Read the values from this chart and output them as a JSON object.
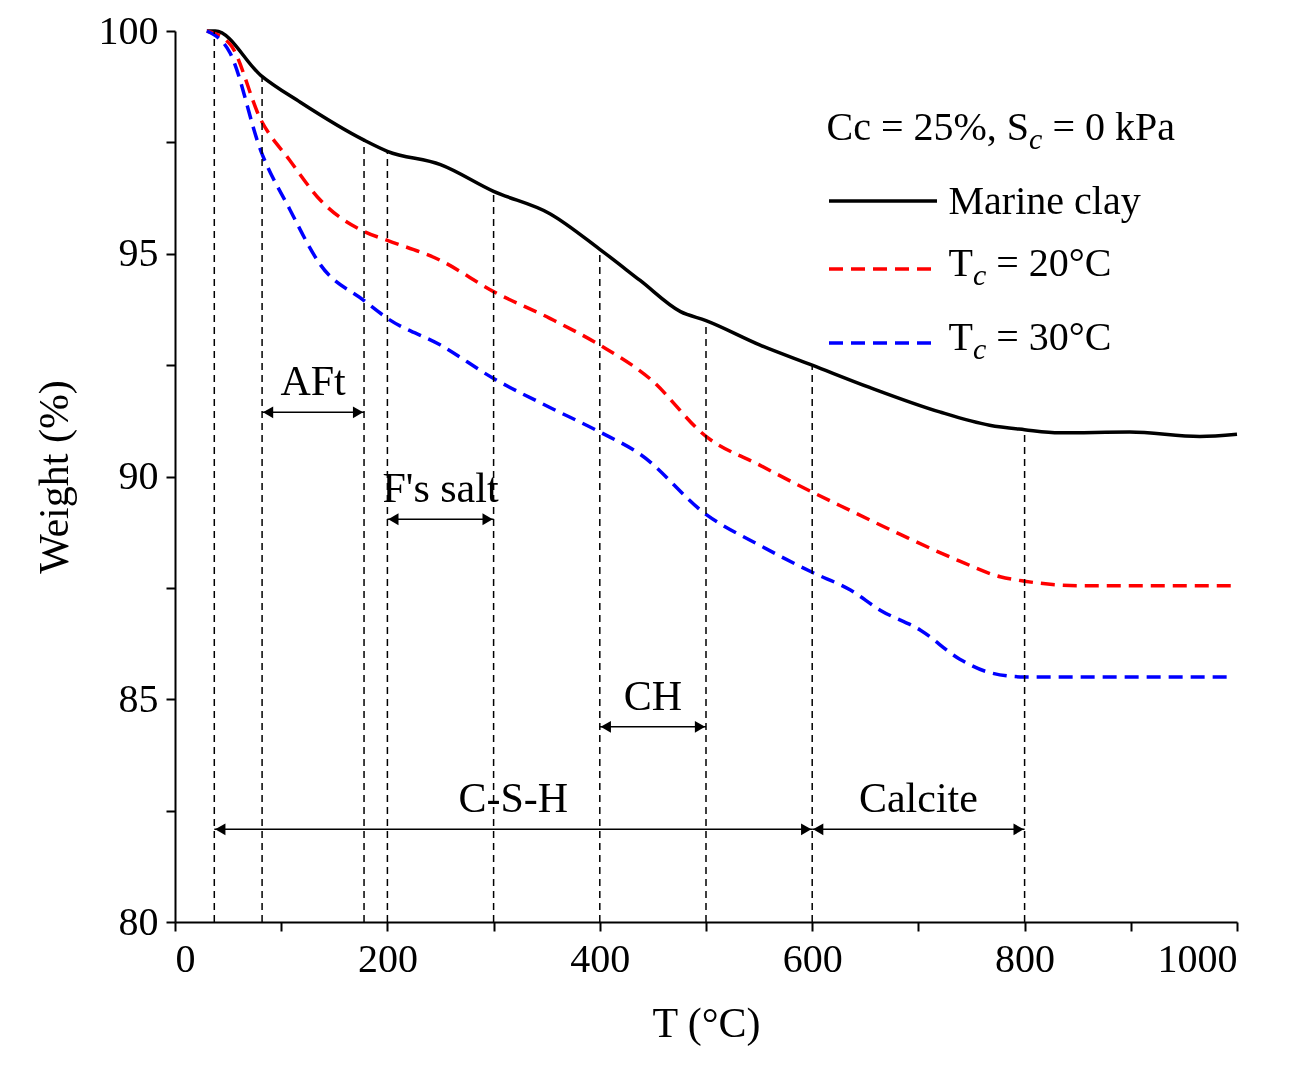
{
  "chart_data": {
    "type": "line",
    "xlabel": "T (°C)",
    "ylabel": "Weight (%)",
    "legend_title": "Cc = 25%, S$_{c}$ = 0 kPa",
    "legend": "top right",
    "grid": false,
    "xlim": [
      0,
      1000
    ],
    "ylim": [
      80,
      100
    ],
    "xticks": [
      0,
      {
        "value": 100,
        "label": null
      },
      200,
      {
        "value": 300,
        "label": null
      },
      400,
      {
        "value": 500,
        "label": null
      },
      600,
      {
        "value": 700,
        "label": null
      },
      800,
      {
        "value": 900,
        "label": null
      },
      1000
    ],
    "yticks": [
      80,
      {
        "value": 82.5,
        "label": null
      },
      85,
      {
        "value": 87.5,
        "label": null
      },
      90,
      {
        "value": 92.5,
        "label": null
      },
      95,
      {
        "value": 97.5,
        "label": null
      },
      100
    ],
    "series": [
      {
        "name": "Marine clay",
        "color": "#000000",
        "line_style": "solid",
        "x": [
          30,
          38,
          81,
          118,
          178,
          200,
          250,
          300,
          353,
          400,
          438,
          476,
          500,
          551,
          600,
          654,
          720,
          767,
          800,
          833,
          899,
          965,
          1000
        ],
        "values": [
          100,
          100,
          99.0,
          98.4,
          97.55,
          97.3,
          97.0,
          96.4,
          95.9,
          95.1,
          94.4,
          93.7,
          93.5,
          92.95,
          92.5,
          92.0,
          91.45,
          91.15,
          91.05,
          90.98,
          91.0,
          90.9,
          90.95
        ]
      },
      {
        "name": "T$_{c}$ = 20°C",
        "color": "#ff0000",
        "line_style": "dashed",
        "x": [
          30,
          52,
          81,
          108,
          137,
          178,
          200,
          250,
          300,
          353,
          400,
          447,
          500,
          551,
          600,
          626,
          683,
          739,
          777,
          800,
          852,
          1000
        ],
        "values": [
          100,
          99.7,
          98.0,
          97.1,
          96.2,
          95.5,
          95.3,
          94.85,
          94.15,
          93.55,
          92.95,
          92.2,
          90.9,
          90.25,
          89.65,
          89.35,
          88.7,
          88.1,
          87.75,
          87.65,
          87.55,
          87.55
        ]
      },
      {
        "name": "T$_{c}$ = 30°C",
        "color": "#0000ff",
        "line_style": "dashed",
        "x": [
          30,
          52,
          81,
          108,
          137,
          178,
          200,
          250,
          300,
          353,
          400,
          438,
          500,
          551,
          600,
          636,
          664,
          702,
          739,
          767,
          800,
          871,
          991
        ],
        "values": [
          100,
          99.5,
          97.3,
          96.0,
          94.75,
          93.95,
          93.55,
          92.95,
          92.2,
          91.55,
          91.0,
          90.5,
          89.15,
          88.45,
          87.85,
          87.45,
          87.0,
          86.55,
          85.9,
          85.6,
          85.5,
          85.5,
          85.5
        ]
      }
    ],
    "ref_lines": [
      {
        "axis": "x",
        "value": 37
      },
      {
        "axis": "x",
        "value": 82
      },
      {
        "axis": "x",
        "value": 178
      },
      {
        "axis": "x",
        "value": 200
      },
      {
        "axis": "x",
        "value": 300
      },
      {
        "axis": "x",
        "value": 400
      },
      {
        "axis": "x",
        "value": 500
      },
      {
        "axis": "x",
        "value": 600
      },
      {
        "axis": "x",
        "value": 800
      }
    ],
    "annotations": [
      "AFt",
      "F's salt",
      "CH",
      "C-S-H",
      "Calcite"
    ]
  }
}
